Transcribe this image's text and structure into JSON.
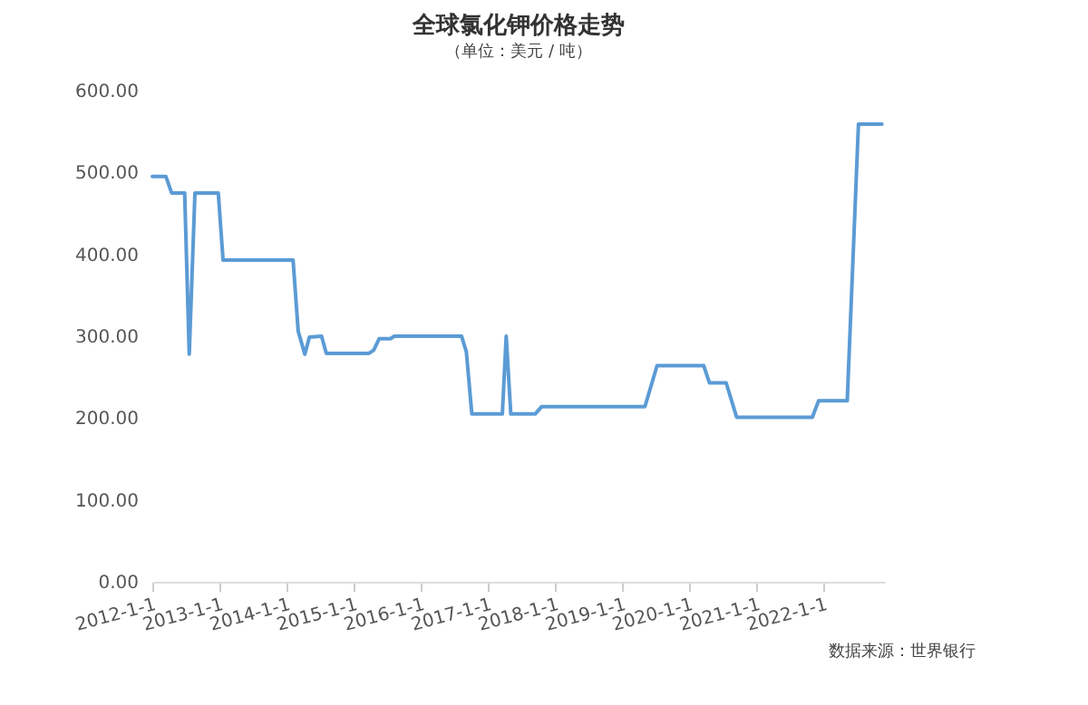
{
  "chart_data": {
    "type": "line",
    "title": "全球氯化钾价格走势",
    "subtitle": "（单位：美元 / 吨）",
    "x": [
      "2012-01-01",
      "2012-03-15",
      "2012-04-15",
      "2012-06-25",
      "2012-07-20",
      "2012-08-20",
      "2012-12-25",
      "2013-01-20",
      "2014-02-05",
      "2014-03-05",
      "2014-04-10",
      "2014-05-05",
      "2014-07-10",
      "2014-08-05",
      "2015-03-25",
      "2015-04-20",
      "2015-05-20",
      "2015-07-20",
      "2015-08-10",
      "2016-08-10",
      "2016-09-05",
      "2016-10-05",
      "2017-03-20",
      "2017-04-10",
      "2017-05-05",
      "2017-09-15",
      "2017-10-20",
      "2019-05-05",
      "2019-07-10",
      "2020-03-20",
      "2020-04-20",
      "2020-07-20",
      "2020-09-15",
      "2021-11-01",
      "2021-12-05",
      "2022-05-10",
      "2022-07-10",
      "2022-11-15"
    ],
    "series": [
      {
        "color": "#5b9bd5",
        "values": [
          495,
          495,
          475,
          475,
          278,
          475,
          475,
          393,
          393,
          306,
          278,
          299,
          300,
          279,
          279,
          283,
          297,
          297,
          300,
          300,
          281,
          205,
          205,
          300,
          205,
          205,
          214,
          214,
          264,
          264,
          243,
          243,
          201,
          201,
          221,
          221,
          559,
          559
        ]
      }
    ],
    "xlim": [
      "2012-01-01",
      "2022-12-01"
    ],
    "xticks": [
      {
        "value": "2012-01-01",
        "label": "2012-1-1"
      },
      {
        "value": "2013-01-01",
        "label": "2013-1-1"
      },
      {
        "value": "2014-01-01",
        "label": "2014-1-1"
      },
      {
        "value": "2015-01-01",
        "label": "2015-1-1"
      },
      {
        "value": "2016-01-01",
        "label": "2016-1-1"
      },
      {
        "value": "2017-01-01",
        "label": "2017-1-1"
      },
      {
        "value": "2018-01-01",
        "label": "2018-1-1"
      },
      {
        "value": "2019-01-01",
        "label": "2019-1-1"
      },
      {
        "value": "2020-01-01",
        "label": "2020-1-1"
      },
      {
        "value": "2021-01-01",
        "label": "2021-1-1"
      },
      {
        "value": "2022-01-01",
        "label": "2022-1-1"
      }
    ],
    "ylim": [
      0,
      600
    ],
    "yticks": [
      {
        "value": 0,
        "label": "0.00"
      },
      {
        "value": 100,
        "label": "100.00"
      },
      {
        "value": 200,
        "label": "200.00"
      },
      {
        "value": 300,
        "label": "300.00"
      },
      {
        "value": 400,
        "label": "400.00"
      },
      {
        "value": 500,
        "label": "500.00"
      },
      {
        "value": 600,
        "label": "600.00"
      }
    ],
    "grid": false,
    "annotations": [
      "数据来源：世界银行"
    ]
  }
}
